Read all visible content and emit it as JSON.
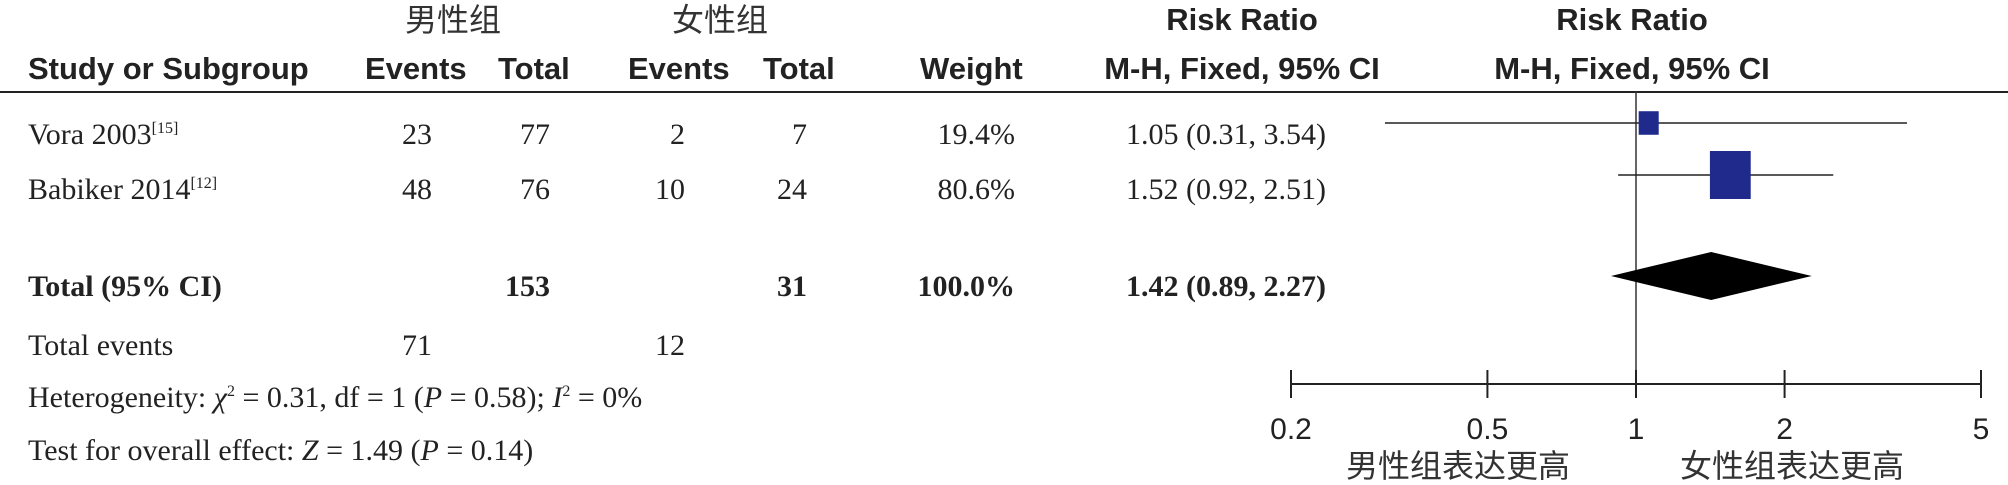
{
  "header": {
    "group1": "男性组",
    "group2": "女性组",
    "rr_title_left": "Risk Ratio",
    "rr_title_right": "Risk Ratio",
    "col_study": "Study or Subgroup",
    "col_events1": "Events",
    "col_total1": "Total",
    "col_events2": "Events",
    "col_total2": "Total",
    "col_weight": "Weight",
    "col_method_left": "M-H, Fixed, 95% CI",
    "col_method_right": "M-H, Fixed, 95% CI"
  },
  "studies": [
    {
      "name": "Vora 2003",
      "ref": "[15]",
      "events1": "23",
      "total1": "77",
      "events2": "2",
      "total2": "7",
      "weight": "19.4%",
      "ci_text": "1.05 (0.31, 3.54)"
    },
    {
      "name": "Babiker 2014",
      "ref": "[12]",
      "events1": "48",
      "total1": "76",
      "events2": "10",
      "total2": "24",
      "weight": "80.6%",
      "ci_text": "1.52 (0.92, 2.51)"
    }
  ],
  "total": {
    "label": "Total (95% CI)",
    "total1": "153",
    "total2": "31",
    "weight": "100.0%",
    "ci_text": "1.42 (0.89, 2.27)"
  },
  "total_events": {
    "label": "Total events",
    "events1": "71",
    "events2": "12"
  },
  "heterogeneity": {
    "prefix": "Heterogeneity: ",
    "chi": "χ",
    "chi_rest": " = 0.31, df = 1 (",
    "p": "P",
    "p_rest": " = 0.58); ",
    "i": "I",
    "i_rest": " = 0%"
  },
  "overall": {
    "prefix": "Test for overall effect: ",
    "z": "Z",
    "z_rest": " = 1.49 (",
    "p": "P",
    "p_rest": " = 0.14)"
  },
  "axis": {
    "favours_left": "男性组表达更高",
    "favours_right": "女性组表达更高"
  },
  "chart_data": {
    "type": "scatter",
    "scale": "log",
    "xlim": [
      0.2,
      5
    ],
    "ticks": [
      0.2,
      0.5,
      1,
      2,
      5
    ],
    "tick_labels": [
      "0.2",
      "0.5",
      "1",
      "2",
      "5"
    ],
    "null_line": 1,
    "series": [
      {
        "name": "Vora 2003",
        "estimate": 1.05,
        "lower": 0.31,
        "upper": 3.54,
        "weight": 19.4
      },
      {
        "name": "Babiker 2014",
        "estimate": 1.52,
        "lower": 0.92,
        "upper": 2.51,
        "weight": 80.6
      }
    ],
    "pooled": {
      "estimate": 1.42,
      "lower": 0.89,
      "upper": 2.27
    },
    "colors": {
      "marker": "#1f2a8c",
      "diamond": "#000000"
    }
  }
}
